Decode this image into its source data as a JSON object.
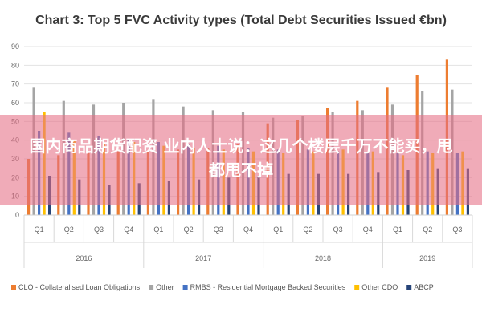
{
  "chart_data": {
    "type": "bar",
    "title": "Chart 3: Top 5 FVC Activity types (Total Debt Securities Issued €bn)",
    "xlabel": "",
    "ylabel": "",
    "ylim": [
      0,
      90
    ],
    "yticks": [
      0,
      10,
      20,
      30,
      40,
      50,
      60,
      70,
      80,
      90
    ],
    "grid": true,
    "legend_position": "bottom",
    "categories": [
      "Q1",
      "Q2",
      "Q3",
      "Q4",
      "Q1",
      "Q2",
      "Q3",
      "Q4",
      "Q1",
      "Q2",
      "Q3",
      "Q4",
      "Q1",
      "Q2",
      "Q3"
    ],
    "groups": [
      {
        "label": "2016",
        "count": 4
      },
      {
        "label": "2017",
        "count": 4
      },
      {
        "label": "2018",
        "count": 4
      },
      {
        "label": "2019",
        "count": 3
      }
    ],
    "series": [
      {
        "name": "CLO - Collateralised Loan Obligations",
        "color": "#ed7d31",
        "values": [
          30,
          32,
          33,
          34,
          34,
          35,
          36,
          38,
          49,
          51,
          57,
          61,
          68,
          75,
          83
        ]
      },
      {
        "name": "Other",
        "color": "#a5a5a5",
        "values": [
          68,
          61,
          59,
          60,
          62,
          58,
          56,
          55,
          52,
          53,
          55,
          56,
          59,
          66,
          67
        ]
      },
      {
        "name": "RMBS - Residential Mortgage Backed Securities",
        "color": "#4472c4",
        "values": [
          45,
          44,
          42,
          40,
          39,
          38,
          37,
          36,
          35,
          35,
          34,
          33,
          33,
          34,
          33
        ]
      },
      {
        "name": "Other CDO",
        "color": "#ffc000",
        "values": [
          55,
          40,
          38,
          39,
          37,
          36,
          35,
          34,
          33,
          34,
          35,
          34,
          32,
          33,
          34
        ]
      },
      {
        "name": "ABCP",
        "color": "#264478",
        "values": [
          21,
          19,
          16,
          17,
          18,
          19,
          20,
          21,
          22,
          22,
          22,
          23,
          24,
          25,
          25
        ]
      }
    ]
  },
  "overlay": {
    "text": "国内商品期货配资 业内人士说：这几个楼层千万不能买，甩都甩不掉"
  }
}
